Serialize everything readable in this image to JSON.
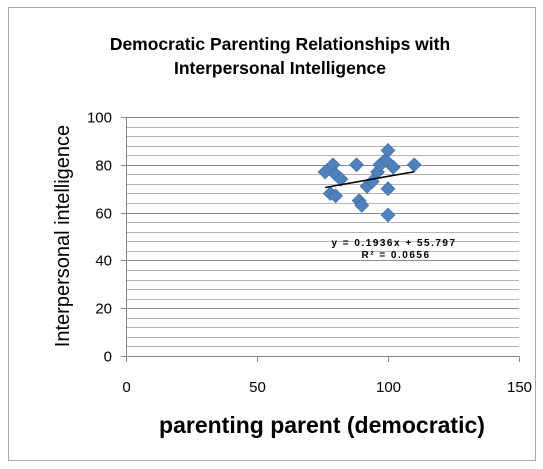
{
  "chart_data": {
    "type": "scatter",
    "title": [
      "Democratic Parenting Relationships with",
      "Interpersonal Intelligence"
    ],
    "xlabel": "parenting parent (democratic)",
    "ylabel": "Interpersonal intelligence",
    "xlim": [
      0,
      150
    ],
    "ylim": [
      0,
      100
    ],
    "x_major_unit": 50,
    "y_major_unit": 20,
    "y_minor_unit": 4,
    "xticks": [
      "0",
      "50",
      "100",
      "150"
    ],
    "yticks": [
      "0",
      "20",
      "40",
      "60",
      "80",
      "100"
    ],
    "grid": true,
    "minor_grid": true,
    "legend": "none",
    "series": [
      {
        "marker": "diamond",
        "color": "#4F81BD",
        "x": [
          76,
          79,
          80,
          78,
          80,
          82,
          88,
          89,
          90,
          92,
          94,
          96,
          97,
          99,
          100,
          100,
          100,
          102,
          110
        ],
        "y": [
          77,
          80,
          76,
          68,
          67,
          74,
          80,
          65,
          63,
          71,
          73,
          77,
          80,
          82,
          86,
          70,
          59,
          79,
          80
        ]
      }
    ],
    "trendline": {
      "type": "linear",
      "slope": 0.1936,
      "intercept": 55.797,
      "color": "#000000",
      "equation": "y = 0.1936x + 55.797",
      "r_squared": "R² = 0.0656"
    }
  }
}
